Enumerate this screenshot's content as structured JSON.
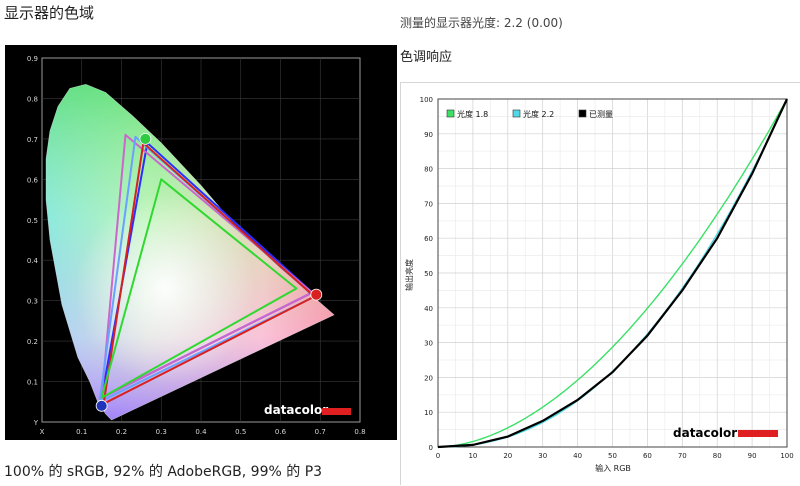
{
  "header": {
    "gamut_title": "显示器的色域",
    "gamma_measured": "测量的显示器光度: 2.2 (0.00)",
    "tone_title": "色调响应",
    "gamut_caption": "100% 的 sRGB, 92% 的 AdobeRGB, 99% 的 P3"
  },
  "logo": {
    "text": "datacolor"
  },
  "colors": {
    "locus_green": "#3be067",
    "cyan_curve": "#4fd9e6",
    "measured_curve": "#000000",
    "red_primary": "#dd2222",
    "blue_primary": "#2233bb",
    "logo_red": "#e02020"
  },
  "chart_data": [
    {
      "type": "scatter",
      "title": "",
      "xlabel": "X",
      "ylabel": "Y",
      "xlim": [
        0.0,
        0.8
      ],
      "ylim": [
        0.0,
        0.9
      ],
      "x_ticks": [
        "X",
        "0.1",
        "0.2",
        "0.3",
        "0.4",
        "0.5",
        "0.6",
        "0.7",
        "0.8"
      ],
      "y_ticks": [
        "Y",
        "0.1",
        "0.2",
        "0.3",
        "0.4",
        "0.5",
        "0.6",
        "0.7",
        "0.8",
        "0.9"
      ],
      "locus": [
        [
          0.175,
          0.005
        ],
        [
          0.16,
          0.02
        ],
        [
          0.14,
          0.05
        ],
        [
          0.12,
          0.1
        ],
        [
          0.09,
          0.16
        ],
        [
          0.05,
          0.29
        ],
        [
          0.02,
          0.45
        ],
        [
          0.01,
          0.55
        ],
        [
          0.01,
          0.65
        ],
        [
          0.02,
          0.72
        ],
        [
          0.04,
          0.78
        ],
        [
          0.07,
          0.825
        ],
        [
          0.11,
          0.835
        ],
        [
          0.16,
          0.815
        ],
        [
          0.23,
          0.755
        ],
        [
          0.3,
          0.69
        ],
        [
          0.4,
          0.585
        ],
        [
          0.5,
          0.47
        ],
        [
          0.6,
          0.38
        ],
        [
          0.735,
          0.265
        ]
      ],
      "triangles": [
        {
          "color": "#2d2dff",
          "points": [
            [
              0.68,
              0.32
            ],
            [
              0.265,
              0.69
            ],
            [
              0.15,
              0.06
            ]
          ]
        },
        {
          "color": "#cc66cc",
          "points": [
            [
              0.68,
              0.32
            ],
            [
              0.21,
              0.71
            ],
            [
              0.15,
              0.06
            ]
          ]
        },
        {
          "color": "#6aa0ff",
          "points": [
            [
              0.685,
              0.31
            ],
            [
              0.235,
              0.705
            ],
            [
              0.145,
              0.05
            ]
          ]
        },
        {
          "color": "#d82020",
          "points": [
            [
              0.685,
              0.31
            ],
            [
              0.255,
              0.69
            ],
            [
              0.155,
              0.045
            ]
          ]
        },
        {
          "color": "#30d830",
          "points": [
            [
              0.64,
              0.33
            ],
            [
              0.3,
              0.6
            ],
            [
              0.15,
              0.06
            ]
          ]
        }
      ],
      "primaries": [
        {
          "name": "R",
          "color": "#d82020",
          "x": 0.69,
          "y": 0.315
        },
        {
          "name": "G",
          "color": "#2ecc40",
          "x": 0.26,
          "y": 0.7
        },
        {
          "name": "B",
          "color": "#2233bb",
          "x": 0.15,
          "y": 0.04
        }
      ]
    },
    {
      "type": "line",
      "title": "",
      "xlabel": "输入 RGB",
      "ylabel": "输出亮度",
      "xlim": [
        0,
        100
      ],
      "ylim": [
        0,
        100
      ],
      "x_ticks": [
        "0",
        "10",
        "20",
        "30",
        "40",
        "50",
        "60",
        "70",
        "80",
        "90",
        "100"
      ],
      "y_ticks": [
        "0",
        "10",
        "20",
        "30",
        "40",
        "50",
        "60",
        "70",
        "80",
        "90",
        "100"
      ],
      "grid": true,
      "legend_position": "top-left",
      "series": [
        {
          "name": "光度 1.8",
          "color": "#3be067",
          "gamma": 1.8
        },
        {
          "name": "光度 2.2",
          "color": "#4fd9e6",
          "gamma": 2.2
        },
        {
          "name": "已测量",
          "color": "#000000",
          "gamma": 2.2,
          "x": [
            0,
            10,
            20,
            30,
            40,
            50,
            60,
            70,
            80,
            90,
            100
          ],
          "y": [
            0,
            0.6,
            3,
            7.5,
            13.5,
            21.5,
            32,
            45,
            60,
            78.5,
            100
          ]
        }
      ]
    }
  ]
}
